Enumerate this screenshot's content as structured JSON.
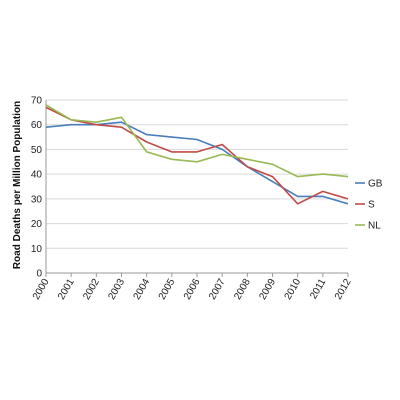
{
  "chart_data": {
    "type": "line",
    "title": "",
    "xlabel": "",
    "ylabel": "Road Deaths per Million Population",
    "ylim": [
      0,
      70
    ],
    "yticks": [
      0,
      10,
      20,
      30,
      40,
      50,
      60,
      70
    ],
    "grid": true,
    "legend_position": "right",
    "categories": [
      "2000",
      "2001",
      "2002",
      "2003",
      "2004",
      "2005",
      "2006",
      "2007",
      "2008",
      "2009",
      "2010",
      "2011",
      "2012"
    ],
    "series": [
      {
        "name": "GB",
        "color": "#4a7ebb",
        "values": [
          59,
          60,
          60,
          61,
          56,
          55,
          54,
          50,
          43,
          37,
          31,
          31,
          28
        ]
      },
      {
        "name": "S",
        "color": "#be4b48",
        "values": [
          67,
          62,
          60,
          59,
          53,
          49,
          49,
          52,
          43,
          39,
          28,
          33,
          30
        ]
      },
      {
        "name": "NL",
        "color": "#98b954",
        "values": [
          68,
          62,
          61,
          63,
          49,
          46,
          45,
          48,
          46,
          44,
          39,
          40,
          39
        ]
      }
    ]
  }
}
